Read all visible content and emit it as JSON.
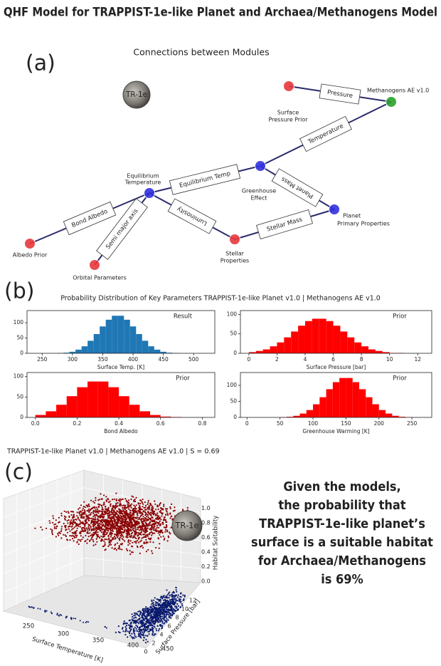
{
  "title": "QHF Model for TRAPPIST-1e-like Planet and Archaea/Methanogens Model",
  "panel_labels": [
    "(a)",
    "(b)",
    "(c)"
  ],
  "panel_a": {
    "title": "Connections between Modules",
    "planet_icon": "TR-1e",
    "nodes": [
      {
        "label": [
          "Albedo Prior"
        ],
        "color": "#e8383d"
      },
      {
        "label": [
          "Orbital Parameters"
        ],
        "color": "#e8383d"
      },
      {
        "label": [
          "Equilibrium",
          "Temperature"
        ],
        "color": "#3030e0"
      },
      {
        "label": [
          "Stellar",
          "Properties"
        ],
        "color": "#e8383d"
      },
      {
        "label": [
          "Greenhouse",
          "Effect"
        ],
        "color": "#3030e0"
      },
      {
        "label": [
          "Planet",
          "Primary Properties"
        ],
        "color": "#3030e0"
      },
      {
        "label": [
          "Surface",
          "Pressure Prior"
        ],
        "color": "#e8383d"
      },
      {
        "label": [
          "Methanogens AE v1.0"
        ],
        "color": "#2ca02c"
      }
    ],
    "edges": [
      {
        "from": 0,
        "to": 2,
        "label": "Bond Albedo"
      },
      {
        "from": 1,
        "to": 2,
        "label": "Semi major axis"
      },
      {
        "from": 3,
        "to": 2,
        "label": "Luminosity"
      },
      {
        "from": 2,
        "to": 4,
        "label": "Equilibrium Temp"
      },
      {
        "from": 3,
        "to": 5,
        "label": "Stellar Mass"
      },
      {
        "from": 5,
        "to": 4,
        "label": "Planet Mass"
      },
      {
        "from": 4,
        "to": 7,
        "label": "Temperature"
      },
      {
        "from": 6,
        "to": 7,
        "label": "Pressure"
      }
    ]
  },
  "panel_b": {
    "title": "Probability Distribution of Key Parameters  TRAPPIST-1e-like Planet v1.0 | Methanogens AE v1.0"
  },
  "chart_data": [
    {
      "type": "histogram",
      "x_label": "Surface Temp. [K]",
      "annotation": "Result",
      "annotation_color": "#1a1a8c",
      "color": "#1f77b4",
      "bins": [
        275,
        285,
        295,
        305,
        315,
        325,
        335,
        345,
        355,
        365,
        375,
        385,
        395,
        405,
        415,
        425,
        435,
        445,
        455,
        465,
        475
      ],
      "values": [
        1,
        2,
        5,
        12,
        23,
        41,
        63,
        88,
        110,
        123,
        123,
        110,
        88,
        63,
        41,
        23,
        12,
        5,
        2,
        1
      ],
      "xlim": [
        225,
        535
      ],
      "xticks": [
        250,
        300,
        350,
        400,
        450,
        500
      ],
      "ylim": [
        0,
        140
      ],
      "yticks": [
        0,
        50,
        100
      ]
    },
    {
      "type": "histogram",
      "x_label": "Surface Pressure [bar]",
      "annotation": "Prior",
      "annotation_color": "#d62728",
      "color": "#ff0000",
      "bins": [
        0,
        0.5,
        1,
        1.5,
        2,
        2.5,
        3,
        3.5,
        4,
        4.5,
        5,
        5.5,
        6,
        6.5,
        7,
        7.5,
        8,
        8.5,
        9,
        9.5,
        10,
        10.5,
        11,
        11.5,
        12
      ],
      "values": [
        3,
        6,
        10,
        18,
        28,
        41,
        56,
        71,
        83,
        89,
        89,
        83,
        71,
        56,
        41,
        28,
        18,
        10,
        6,
        3,
        1,
        1,
        0,
        0
      ],
      "xlim": [
        -0.6,
        13
      ],
      "xticks": [
        0,
        2,
        4,
        6,
        8,
        10,
        12
      ],
      "ylim": [
        0,
        110
      ],
      "yticks": [
        0,
        50,
        100
      ]
    },
    {
      "type": "histogram",
      "x_label": "Bond Albedo",
      "annotation": "Prior",
      "annotation_color": "#d62728",
      "color": "#ff0000",
      "bins": [
        0,
        0.05,
        0.1,
        0.15,
        0.2,
        0.25,
        0.3,
        0.35,
        0.4,
        0.45,
        0.5,
        0.55,
        0.6,
        0.65,
        0.7
      ],
      "values": [
        6,
        15,
        31,
        52,
        74,
        88,
        88,
        74,
        52,
        31,
        15,
        6,
        2,
        1
      ],
      "xlim": [
        -0.04,
        0.86
      ],
      "xticks": [
        {
          "value": 0,
          "label": "0.0"
        },
        0.2,
        0.4,
        0.6,
        0.8
      ],
      "ylim": [
        0,
        110
      ],
      "yticks": [
        0,
        50,
        100
      ]
    },
    {
      "type": "histogram",
      "x_label": "Greenhouse Warming [K]",
      "annotation": "Prior",
      "annotation_color": "#d62728",
      "color": "#ff0000",
      "bins": [
        50,
        60,
        70,
        80,
        90,
        100,
        110,
        120,
        130,
        140,
        150,
        160,
        170,
        180,
        190,
        200,
        210,
        220,
        230,
        240,
        250
      ],
      "values": [
        1,
        2,
        5,
        12,
        23,
        41,
        63,
        88,
        110,
        123,
        123,
        110,
        88,
        63,
        41,
        23,
        12,
        5,
        2,
        1
      ],
      "xlim": [
        -10,
        280
      ],
      "xticks": [
        0,
        50,
        100,
        150,
        200,
        250
      ],
      "ylim": [
        0,
        140
      ],
      "yticks": [
        0,
        50,
        100
      ]
    }
  ],
  "panel_c": {
    "title": "TRAPPIST-1e-like Planet v1.0 | Methanogens AE v1.0 | S = 0.69",
    "x_label": "Surface Temperature [K]",
    "x_ticks": [
      "250",
      "300",
      "350",
      "400",
      "450"
    ],
    "y_label": "Surface Pressure [bar]",
    "y_ticks": [
      "0",
      "2",
      "4",
      "6",
      "8",
      "10",
      "12"
    ],
    "z_label": "Habitat Suitability",
    "z_ticks": [
      "0.0",
      "0.2",
      "0.4",
      "0.6",
      "0.8",
      "1.0"
    ],
    "planet_icon": "TR-1e",
    "conclusion": [
      "Given the models,",
      "the probability that",
      "TRAPPIST-1e-like planet’s",
      "surface  is a suitable habitat",
      "for Archaea/Methanogens",
      "is 69%"
    ]
  }
}
